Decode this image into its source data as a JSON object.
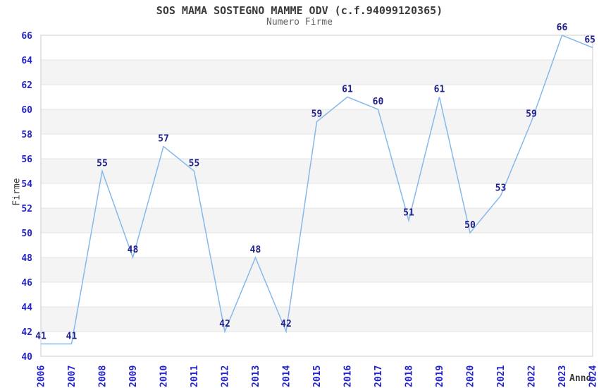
{
  "header": {
    "title": "SOS MAMA SOSTEGNO MAMME ODV (c.f.94099120365)",
    "subtitle": "Numero Firme"
  },
  "chart_data": {
    "type": "line",
    "title": "SOS MAMA SOSTEGNO MAMME ODV (c.f.94099120365)",
    "subtitle": "Numero Firme",
    "xlabel": "Anno",
    "ylabel": "Firme",
    "categories": [
      "2006",
      "2007",
      "2008",
      "2009",
      "2010",
      "2011",
      "2012",
      "2013",
      "2014",
      "2015",
      "2016",
      "2017",
      "2018",
      "2019",
      "2020",
      "2021",
      "2022",
      "2023",
      "2024"
    ],
    "values": [
      41,
      41,
      55,
      48,
      57,
      55,
      42,
      48,
      42,
      59,
      61,
      60,
      51,
      61,
      50,
      53,
      59,
      66,
      65
    ],
    "ylim": [
      40,
      66
    ],
    "ytick_step": 2,
    "grid": "horizontal",
    "banding": "alternate-gray-every-2-units",
    "legend": "none",
    "colors": {
      "line": "#86b9e9",
      "data_label": "#21218b",
      "tick_label": "#2323cd",
      "title": "#3b3b3b",
      "subtitle": "#636363",
      "axis_title": "#3b3b3b",
      "gridline": "#e4e4e4",
      "band": "#f4f4f4",
      "plot_border": "#cdcdcd"
    }
  }
}
